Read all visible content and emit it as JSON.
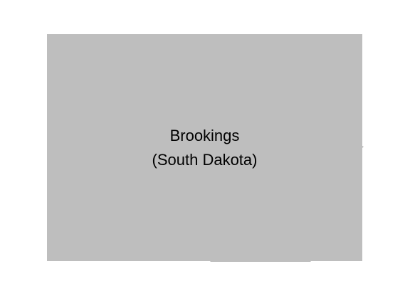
{
  "map": {
    "county_name": "Brookings",
    "state_name": "(South Dakota)",
    "fill_color": "#bebebe",
    "background_color": "#ffffff",
    "label_color": "#000000"
  }
}
